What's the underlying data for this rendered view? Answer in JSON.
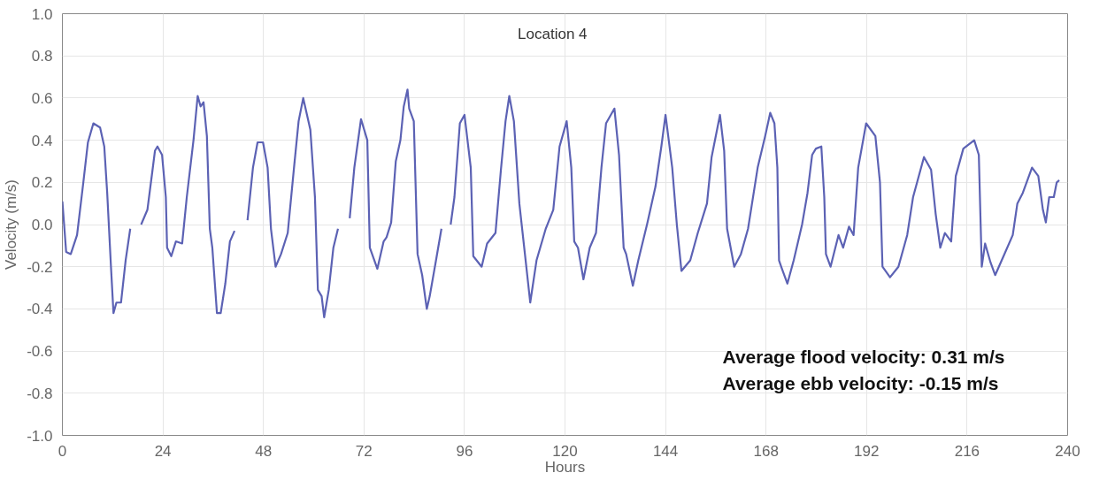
{
  "chart_data": {
    "type": "line",
    "xlabel": "Hours",
    "ylabel": "Velocity (m/s)",
    "annotations": [
      "Location 4",
      "Average flood velocity:  0.31 m/s",
      "Average ebb velocity:    -0.15 m/s"
    ],
    "x": [
      0,
      0.9,
      2,
      3.5,
      5,
      6.1,
      7.4,
      9,
      10,
      10.7,
      11.6,
      12.2,
      12.9,
      14,
      15.1,
      16.2,
      17.5,
      18.8,
      20.3,
      21.4,
      22.1,
      22.7,
      23.8,
      24.7,
      25,
      26,
      27.1,
      28.6,
      29.7,
      31.3,
      32.3,
      33,
      33.7,
      34.5,
      35.2,
      35.8,
      36.9,
      37.8,
      38.9,
      40,
      41.1,
      42.6,
      44.2,
      45.5,
      46.6,
      47.9,
      49,
      49.8,
      50.9,
      52.2,
      53.8,
      55.3,
      56.4,
      57.5,
      59.2,
      60.3,
      61,
      61.9,
      62.5,
      63.6,
      64.7,
      65.8,
      67.2,
      68.6,
      69.7,
      71.3,
      72.8,
      73.4,
      75.2,
      76.7,
      77.4,
      78.5,
      79.6,
      80.7,
      81.5,
      82.4,
      82.8,
      83.9,
      84.8,
      85.9,
      87,
      87.7,
      89.2,
      90.5,
      91.6,
      92.7,
      93.6,
      94.9,
      96,
      97.5,
      98.1,
      100.1,
      101.4,
      103.4,
      104.7,
      105.8,
      106.7,
      107.8,
      109.1,
      110.6,
      111.7,
      113.2,
      115.4,
      117.2,
      118.7,
      120.4,
      121.5,
      122.2,
      123.1,
      124.4,
      125.9,
      127.4,
      128.7,
      129.8,
      131.8,
      132.9,
      134,
      134.6,
      136.2,
      137.5,
      139.7,
      141.6,
      143,
      144,
      145.6,
      146.7,
      147.8,
      149.9,
      151.7,
      153.9,
      155,
      157,
      158,
      158.7,
      160.4,
      162,
      163.7,
      166,
      167.8,
      169,
      170,
      170.7,
      171.1,
      171.8,
      173.1,
      174.6,
      176.6,
      177.9,
      179,
      179.9,
      181.2,
      181.9,
      182.3,
      183.4,
      185.3,
      186.4,
      187.8,
      188.9,
      190,
      191.9,
      194.1,
      195.2,
      195.8,
      197.6,
      199.6,
      201.7,
      203.1,
      205.7,
      207.4,
      208.5,
      209.6,
      210.7,
      212.2,
      213.3,
      215.1,
      217.7,
      218.8,
      219.5,
      220.3,
      221.6,
      222.7,
      224.7,
      226.9,
      228,
      229.3,
      231.5,
      233,
      234.1,
      234.8,
      235.6,
      236.7,
      237.4,
      238
    ],
    "series": [
      {
        "color": "#5c62b4",
        "values": [
          0.11,
          -0.13,
          -0.14,
          -0.05,
          0.2,
          0.39,
          0.48,
          0.46,
          0.37,
          0.15,
          -0.2,
          -0.42,
          -0.37,
          -0.37,
          -0.17,
          -0.02,
          null,
          0.0,
          0.07,
          0.24,
          0.35,
          0.37,
          0.33,
          0.13,
          -0.11,
          -0.15,
          -0.08,
          -0.09,
          0.13,
          0.4,
          0.61,
          0.56,
          0.58,
          0.42,
          -0.02,
          -0.11,
          -0.42,
          -0.42,
          -0.28,
          -0.08,
          -0.03,
          null,
          0.02,
          0.27,
          0.39,
          0.39,
          0.27,
          -0.02,
          -0.2,
          -0.14,
          -0.04,
          0.27,
          0.49,
          0.6,
          0.45,
          0.13,
          -0.31,
          -0.34,
          -0.44,
          -0.31,
          -0.11,
          -0.02,
          null,
          0.03,
          0.27,
          0.5,
          0.4,
          -0.11,
          -0.21,
          -0.08,
          -0.06,
          0.01,
          0.3,
          0.4,
          0.56,
          0.64,
          0.55,
          0.49,
          -0.14,
          -0.24,
          -0.4,
          -0.34,
          -0.17,
          -0.02,
          null,
          0.0,
          0.13,
          0.48,
          0.52,
          0.27,
          -0.15,
          -0.2,
          -0.09,
          -0.04,
          0.26,
          0.49,
          0.61,
          0.49,
          0.1,
          -0.17,
          -0.37,
          -0.17,
          -0.02,
          0.07,
          0.37,
          0.49,
          0.27,
          -0.08,
          -0.11,
          -0.26,
          -0.11,
          -0.04,
          0.27,
          0.48,
          0.55,
          0.33,
          -0.11,
          -0.14,
          -0.29,
          -0.17,
          0.01,
          0.18,
          0.37,
          0.52,
          0.27,
          0.0,
          -0.22,
          -0.17,
          -0.04,
          0.1,
          0.32,
          0.52,
          0.35,
          -0.02,
          -0.2,
          -0.14,
          -0.02,
          0.27,
          0.42,
          0.53,
          0.48,
          0.27,
          -0.17,
          -0.21,
          -0.28,
          -0.17,
          0.0,
          0.15,
          0.33,
          0.36,
          0.37,
          0.13,
          -0.14,
          -0.2,
          -0.05,
          -0.11,
          -0.01,
          -0.05,
          0.27,
          0.48,
          0.42,
          0.2,
          -0.2,
          -0.25,
          -0.2,
          -0.05,
          0.13,
          0.32,
          0.26,
          0.05,
          -0.11,
          -0.04,
          -0.08,
          0.23,
          0.36,
          0.4,
          0.33,
          -0.2,
          -0.09,
          -0.18,
          -0.24,
          -0.15,
          -0.05,
          0.1,
          0.15,
          0.27,
          0.23,
          0.07,
          0.01,
          0.13,
          0.13,
          0.2,
          0.21
        ]
      }
    ],
    "xlim": [
      0,
      240
    ],
    "xticks": [
      0,
      24,
      48,
      72,
      96,
      120,
      144,
      168,
      192,
      216,
      240
    ],
    "ylim": [
      -1.0,
      1.0
    ],
    "yticks": [
      {
        "value": -1.0,
        "label": "-1.0"
      },
      -0.8,
      -0.6,
      -0.4,
      -0.2,
      {
        "value": 0,
        "label": "0.0"
      },
      0.2,
      0.4,
      0.6,
      0.8,
      {
        "value": 1.0,
        "label": "1.0"
      }
    ],
    "grid": true,
    "marker": "none",
    "line_style": "solid"
  }
}
